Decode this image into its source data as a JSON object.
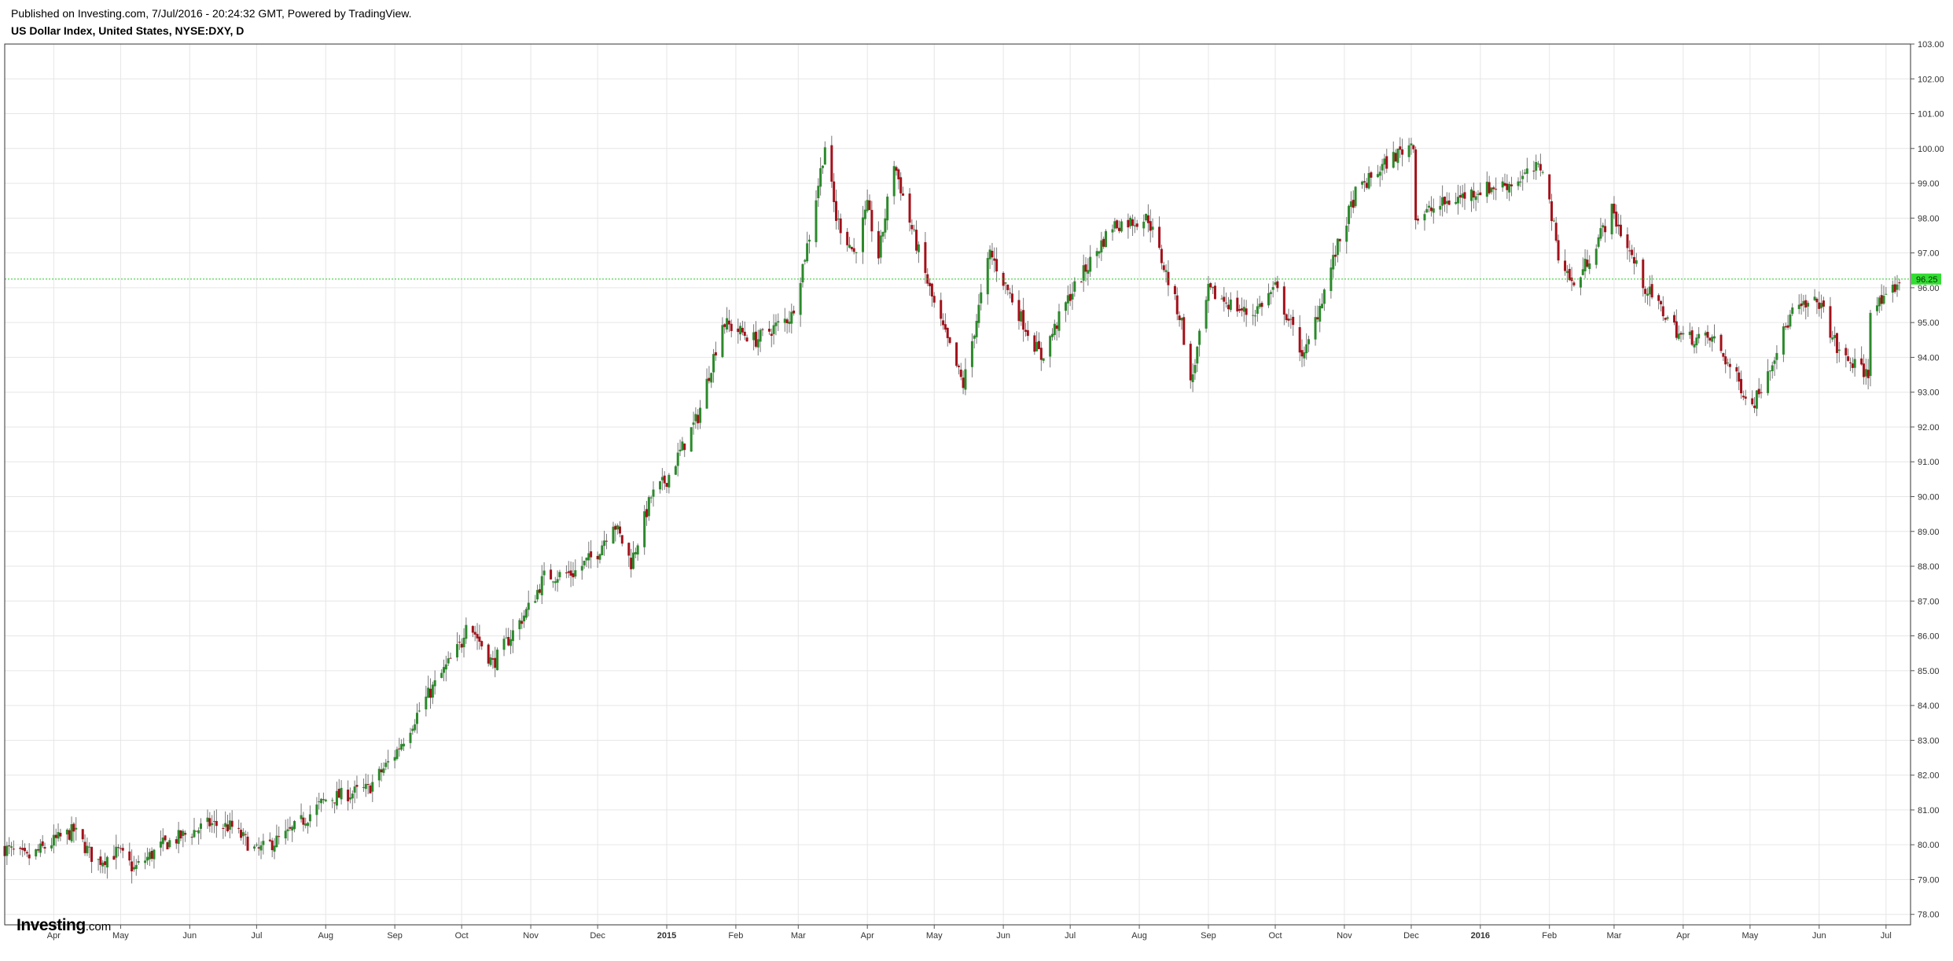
{
  "header": {
    "published": "Published on Investing.com, 7/Jul/2016 - 20:24:32 GMT, Powered by TradingView.",
    "symbol": "US Dollar Index, United States, NYSE:DXY, D"
  },
  "logo": {
    "brand": "Investing",
    "domain": ".com"
  },
  "colors": {
    "up": "#2b8a2b",
    "down": "#a3111a",
    "wick": "#777777",
    "grid": "#e6e6e6",
    "frame": "#333333",
    "last_price_line": "#22cc22",
    "last_price_badge": "#33dd33"
  },
  "chart_data": {
    "type": "candlestick",
    "interval": "D",
    "last_price": 96.25,
    "last_price_label": "96.25",
    "ylim": [
      77.7,
      103.0
    ],
    "y_ticks": [
      "78.00",
      "79.00",
      "80.00",
      "81.00",
      "82.00",
      "83.00",
      "84.00",
      "85.00",
      "86.00",
      "87.00",
      "88.00",
      "89.00",
      "90.00",
      "91.00",
      "92.00",
      "93.00",
      "94.00",
      "95.00",
      "96.00",
      "97.00",
      "98.00",
      "99.00",
      "100.00",
      "101.00",
      "102.00",
      "103.00"
    ],
    "x_range": [
      "2014-03-10",
      "2016-07-12"
    ],
    "x_ticks": [
      {
        "date": "2014-04-01",
        "label": "Apr",
        "bold": false
      },
      {
        "date": "2014-05-01",
        "label": "May",
        "bold": false
      },
      {
        "date": "2014-06-01",
        "label": "Jun",
        "bold": false
      },
      {
        "date": "2014-07-01",
        "label": "Jul",
        "bold": false
      },
      {
        "date": "2014-08-01",
        "label": "Aug",
        "bold": false
      },
      {
        "date": "2014-09-01",
        "label": "Sep",
        "bold": false
      },
      {
        "date": "2014-10-01",
        "label": "Oct",
        "bold": false
      },
      {
        "date": "2014-11-01",
        "label": "Nov",
        "bold": false
      },
      {
        "date": "2014-12-01",
        "label": "Dec",
        "bold": false
      },
      {
        "date": "2015-01-01",
        "label": "2015",
        "bold": true
      },
      {
        "date": "2015-02-01",
        "label": "Feb",
        "bold": false
      },
      {
        "date": "2015-03-01",
        "label": "Mar",
        "bold": false
      },
      {
        "date": "2015-04-01",
        "label": "Apr",
        "bold": false
      },
      {
        "date": "2015-05-01",
        "label": "May",
        "bold": false
      },
      {
        "date": "2015-06-01",
        "label": "Jun",
        "bold": false
      },
      {
        "date": "2015-07-01",
        "label": "Jul",
        "bold": false
      },
      {
        "date": "2015-08-01",
        "label": "Aug",
        "bold": false
      },
      {
        "date": "2015-09-01",
        "label": "Sep",
        "bold": false
      },
      {
        "date": "2015-10-01",
        "label": "Oct",
        "bold": false
      },
      {
        "date": "2015-11-01",
        "label": "Nov",
        "bold": false
      },
      {
        "date": "2015-12-01",
        "label": "Dec",
        "bold": false
      },
      {
        "date": "2016-01-01",
        "label": "2016",
        "bold": true
      },
      {
        "date": "2016-02-01",
        "label": "Feb",
        "bold": false
      },
      {
        "date": "2016-03-01",
        "label": "Mar",
        "bold": false
      },
      {
        "date": "2016-04-01",
        "label": "Apr",
        "bold": false
      },
      {
        "date": "2016-05-01",
        "label": "May",
        "bold": false
      },
      {
        "date": "2016-06-01",
        "label": "Jun",
        "bold": false
      },
      {
        "date": "2016-07-01",
        "label": "Jul",
        "bold": false
      }
    ],
    "close_anchors": [
      {
        "date": "2014-03-10",
        "close": 79.9
      },
      {
        "date": "2014-03-20",
        "close": 79.6
      },
      {
        "date": "2014-04-01",
        "close": 80.1
      },
      {
        "date": "2014-04-10",
        "close": 80.4
      },
      {
        "date": "2014-04-20",
        "close": 79.5
      },
      {
        "date": "2014-04-30",
        "close": 79.8
      },
      {
        "date": "2014-05-07",
        "close": 79.3
      },
      {
        "date": "2014-05-20",
        "close": 80.0
      },
      {
        "date": "2014-06-10",
        "close": 80.6
      },
      {
        "date": "2014-06-20",
        "close": 80.5
      },
      {
        "date": "2014-07-01",
        "close": 79.8
      },
      {
        "date": "2014-07-15",
        "close": 80.3
      },
      {
        "date": "2014-08-01",
        "close": 81.3
      },
      {
        "date": "2014-08-20",
        "close": 81.6
      },
      {
        "date": "2014-09-01",
        "close": 82.6
      },
      {
        "date": "2014-09-15",
        "close": 84.2
      },
      {
        "date": "2014-10-01",
        "close": 85.8
      },
      {
        "date": "2014-10-03",
        "close": 86.5
      },
      {
        "date": "2014-10-15",
        "close": 85.2
      },
      {
        "date": "2014-11-01",
        "close": 86.9
      },
      {
        "date": "2014-11-07",
        "close": 87.7
      },
      {
        "date": "2014-11-20",
        "close": 87.8
      },
      {
        "date": "2014-12-01",
        "close": 88.4
      },
      {
        "date": "2014-12-08",
        "close": 89.3
      },
      {
        "date": "2014-12-16",
        "close": 88.1
      },
      {
        "date": "2014-12-25",
        "close": 90.0
      },
      {
        "date": "2015-01-01",
        "close": 90.5
      },
      {
        "date": "2015-01-15",
        "close": 92.3
      },
      {
        "date": "2015-01-26",
        "close": 95.0
      },
      {
        "date": "2015-02-10",
        "close": 94.5
      },
      {
        "date": "2015-02-26",
        "close": 95.2
      },
      {
        "date": "2015-03-06",
        "close": 97.5
      },
      {
        "date": "2015-03-13",
        "close": 100.1
      },
      {
        "date": "2015-03-18",
        "close": 98.0
      },
      {
        "date": "2015-03-26",
        "close": 97.0
      },
      {
        "date": "2015-04-01",
        "close": 98.3
      },
      {
        "date": "2015-04-06",
        "close": 96.9
      },
      {
        "date": "2015-04-13",
        "close": 99.6
      },
      {
        "date": "2015-04-20",
        "close": 97.9
      },
      {
        "date": "2015-05-01",
        "close": 95.5
      },
      {
        "date": "2015-05-14",
        "close": 93.2
      },
      {
        "date": "2015-05-26",
        "close": 97.0
      },
      {
        "date": "2015-06-10",
        "close": 95.0
      },
      {
        "date": "2015-06-18",
        "close": 94.0
      },
      {
        "date": "2015-07-01",
        "close": 95.8
      },
      {
        "date": "2015-07-20",
        "close": 97.8
      },
      {
        "date": "2015-08-05",
        "close": 98.0
      },
      {
        "date": "2015-08-20",
        "close": 95.0
      },
      {
        "date": "2015-08-24",
        "close": 93.2
      },
      {
        "date": "2015-09-01",
        "close": 95.9
      },
      {
        "date": "2015-09-20",
        "close": 95.2
      },
      {
        "date": "2015-10-01",
        "close": 96.0
      },
      {
        "date": "2015-10-14",
        "close": 94.0
      },
      {
        "date": "2015-10-28",
        "close": 97.0
      },
      {
        "date": "2015-11-06",
        "close": 98.7
      },
      {
        "date": "2015-11-20",
        "close": 99.6
      },
      {
        "date": "2015-12-02",
        "close": 100.2
      },
      {
        "date": "2015-12-03",
        "close": 98.0
      },
      {
        "date": "2015-12-15",
        "close": 98.4
      },
      {
        "date": "2015-12-31",
        "close": 98.8
      },
      {
        "date": "2016-01-15",
        "close": 99.0
      },
      {
        "date": "2016-01-29",
        "close": 99.5
      },
      {
        "date": "2016-02-05",
        "close": 97.0
      },
      {
        "date": "2016-02-12",
        "close": 96.0
      },
      {
        "date": "2016-02-29",
        "close": 98.2
      },
      {
        "date": "2016-03-15",
        "close": 96.0
      },
      {
        "date": "2016-03-31",
        "close": 94.6
      },
      {
        "date": "2016-04-15",
        "close": 94.5
      },
      {
        "date": "2016-05-02",
        "close": 92.6
      },
      {
        "date": "2016-05-20",
        "close": 95.3
      },
      {
        "date": "2016-06-01",
        "close": 95.6
      },
      {
        "date": "2016-06-10",
        "close": 94.1
      },
      {
        "date": "2016-06-23",
        "close": 93.5
      },
      {
        "date": "2016-06-24",
        "close": 95.5
      },
      {
        "date": "2016-07-01",
        "close": 95.6
      },
      {
        "date": "2016-07-07",
        "close": 96.25
      }
    ]
  }
}
